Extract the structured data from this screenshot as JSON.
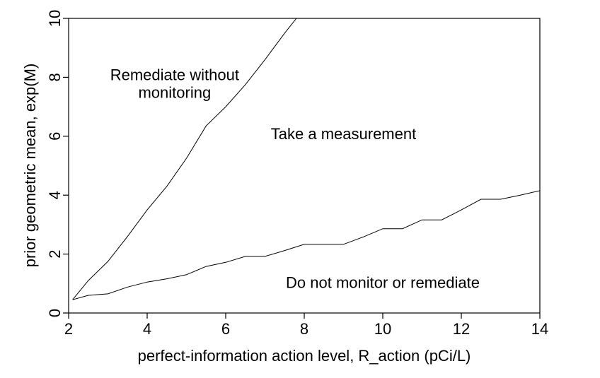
{
  "chart_data": {
    "type": "line",
    "title": "",
    "xlabel": "perfect-information action level, R_action (pCi/L)",
    "ylabel": "prior geometric mean, exp(M)",
    "xlim": [
      2,
      14
    ],
    "ylim": [
      0,
      10
    ],
    "xticks": [
      2,
      4,
      6,
      8,
      10,
      12,
      14
    ],
    "yticks": [
      0,
      2,
      4,
      6,
      8,
      10
    ],
    "grid": false,
    "series": [
      {
        "x": [
          2.1,
          2.5,
          3.0,
          3.5,
          4.0,
          4.5,
          5.0,
          5.5,
          6.0,
          6.5,
          7.0,
          7.5,
          7.8,
          7.9
        ],
        "values": [
          0.45,
          1.1,
          1.75,
          2.6,
          3.5,
          4.3,
          5.25,
          6.35,
          7.0,
          7.75,
          8.6,
          9.5,
          10.0,
          10.2
        ]
      },
      {
        "x": [
          2.1,
          2.5,
          3.0,
          3.5,
          4.0,
          4.5,
          5.0,
          5.5,
          6.0,
          6.5,
          7.0,
          7.5,
          8.0,
          8.5,
          9.0,
          9.5,
          10.0,
          10.5,
          11.0,
          11.5,
          12.0,
          12.5,
          13.0,
          13.5,
          14.0
        ],
        "values": [
          0.45,
          0.6,
          0.65,
          0.88,
          1.05,
          1.16,
          1.3,
          1.58,
          1.72,
          1.92,
          1.92,
          2.12,
          2.33,
          2.33,
          2.33,
          2.58,
          2.86,
          2.86,
          3.16,
          3.16,
          3.5,
          3.86,
          3.86,
          4.0,
          4.15
        ]
      }
    ],
    "annotations": [
      {
        "text": "Remediate without",
        "x": 4.7,
        "y": 7.9
      },
      {
        "text": "monitoring",
        "x": 4.7,
        "y": 7.3
      },
      {
        "text": "Take a measurement",
        "x": 9.0,
        "y": 5.9
      },
      {
        "text": "Do not monitor or remediate",
        "x": 10.0,
        "y": 0.85
      }
    ]
  }
}
